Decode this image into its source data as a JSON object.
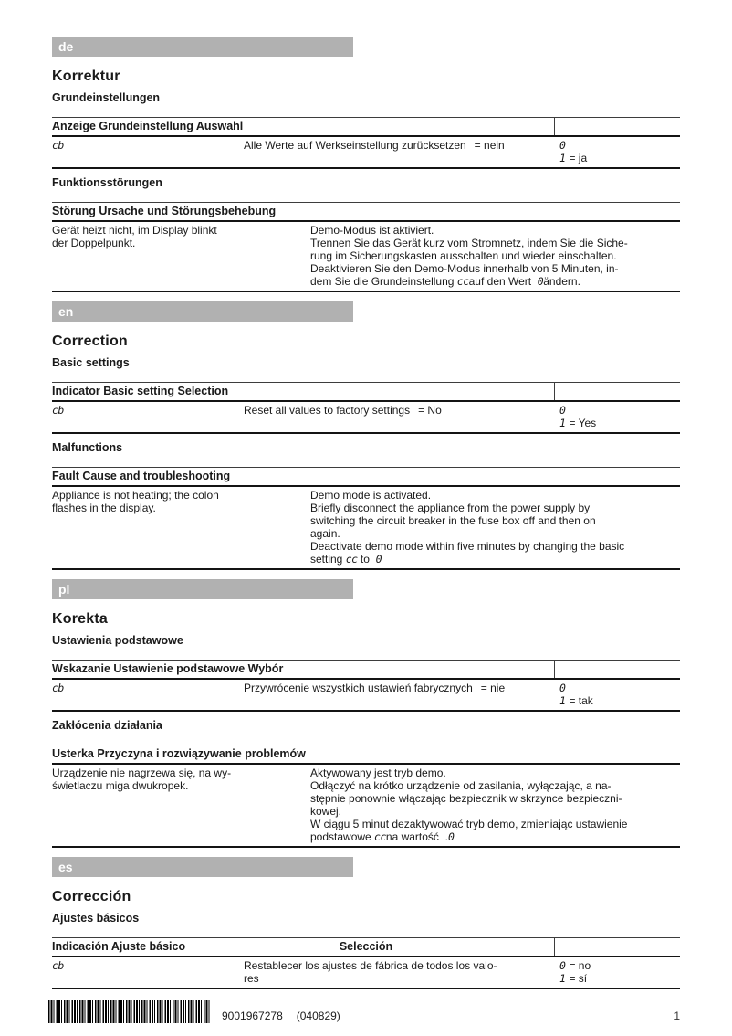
{
  "page": {
    "number": "1",
    "doc_code": "9001967278",
    "doc_date": "(040829)"
  },
  "colors": {
    "bar_gray": "#b1b1b1",
    "rule_thick": "#141414",
    "rule_thin": "#3d3d3d",
    "text": "#1a1a1a"
  },
  "sections": [
    {
      "code": "de",
      "title": "Korrektur",
      "basics_heading": "Grundeinstellungen",
      "basics_table": {
        "header": "Anzeige Grundeinstellung Auswahl",
        "selection_header": "",
        "display_seg": "cb",
        "setting": "Alle Werte auf Werkseinstellung zurücksetzen",
        "eq": "= nein",
        "opt0_seg": "0",
        "opt0_label": "",
        "opt1_seg": "1",
        "opt1_label": "= ja"
      },
      "faults_heading": "Funktionsstörungen",
      "faults_table": {
        "header": "Störung Ursache und Störungsbehebung",
        "fault": "Gerät heizt nicht, im Display blinkt\nder Doppelpunkt.",
        "remedy": "Demo-Modus ist aktiviert.\nTrennen Sie das Gerät kurz vom Stromnetz, indem Sie die Siche-\nrung im Sicherungskasten ausschalten und wieder einschalten.\nDeaktivieren Sie den Demo-Modus innerhalb von 5 Minuten, in-",
        "remedy_tail": [
          {
            "t": "dem Sie die Grundeinstellung "
          },
          {
            "seg": "cc"
          },
          {
            "t": "auf den Wert  "
          },
          {
            "seg": "0"
          },
          {
            "t": "ändern."
          }
        ]
      }
    },
    {
      "code": "en",
      "title": "Correction",
      "basics_heading": "Basic settings",
      "basics_table": {
        "header": "Indicator Basic setting Selection",
        "selection_header": "",
        "display_seg": "cb",
        "setting": "Reset all values to factory settings",
        "eq": "= No",
        "opt0_seg": "0",
        "opt0_label": "",
        "opt1_seg": "1",
        "opt1_label": "= Yes"
      },
      "faults_heading": "Malfunctions",
      "faults_table": {
        "header": "Fault Cause and troubleshooting",
        "fault": "Appliance is not heating; the colon\nflashes in the display.",
        "remedy": "Demo mode is activated.\nBriefly disconnect the appliance from the power supply by\nswitching the circuit breaker in the fuse box off and then on\nagain.\nDeactivate demo mode within five minutes by changing the basic",
        "remedy_tail": [
          {
            "t": "setting "
          },
          {
            "seg": "cc"
          },
          {
            "t": " to  "
          },
          {
            "seg": "0"
          }
        ]
      }
    },
    {
      "code": "pl",
      "title": "Korekta",
      "basics_heading": "Ustawienia podstawowe",
      "basics_table": {
        "header": "Wskazanie Ustawienie podstawowe Wybór",
        "selection_header": "",
        "display_seg": "cb",
        "setting": "Przywrócenie wszystkich ustawień fabrycznych",
        "eq": "= nie",
        "opt0_seg": "0",
        "opt0_label": "",
        "opt1_seg": "1",
        "opt1_label": "= tak"
      },
      "faults_heading": "Zakłócenia działania",
      "faults_table": {
        "header": "Usterka Przyczyna i rozwiązywanie problemów",
        "fault": "Urządzenie nie nagrzewa się, na wy-\nświetlaczu miga dwukropek.",
        "remedy": "Aktywowany jest tryb demo.\nOdłączyć na krótko urządzenie od zasilania, wyłączając, a na-\nstępnie ponownie włączając bezpiecznik w skrzynce bezpieczni-\nkowej.\nW ciągu 5 minut dezaktywować tryb demo, zmieniając ustawienie",
        "remedy_tail": [
          {
            "t": "podstawowe "
          },
          {
            "seg": "cc"
          },
          {
            "t": "na wartość  ."
          },
          {
            "seg": "0"
          }
        ]
      }
    },
    {
      "code": "es",
      "title": "Corrección",
      "basics_heading": "Ajustes básicos",
      "basics_table": {
        "header": "Indicación Ajuste básico",
        "selection_header": "Selección",
        "display_seg": "cb",
        "setting": "Restablecer los ajustes de fábrica de todos los valo-\nres",
        "eq": "",
        "opt0_seg": "0",
        "opt0_label": "= no",
        "opt1_seg": "1",
        "opt1_label": "= sí"
      }
    }
  ]
}
